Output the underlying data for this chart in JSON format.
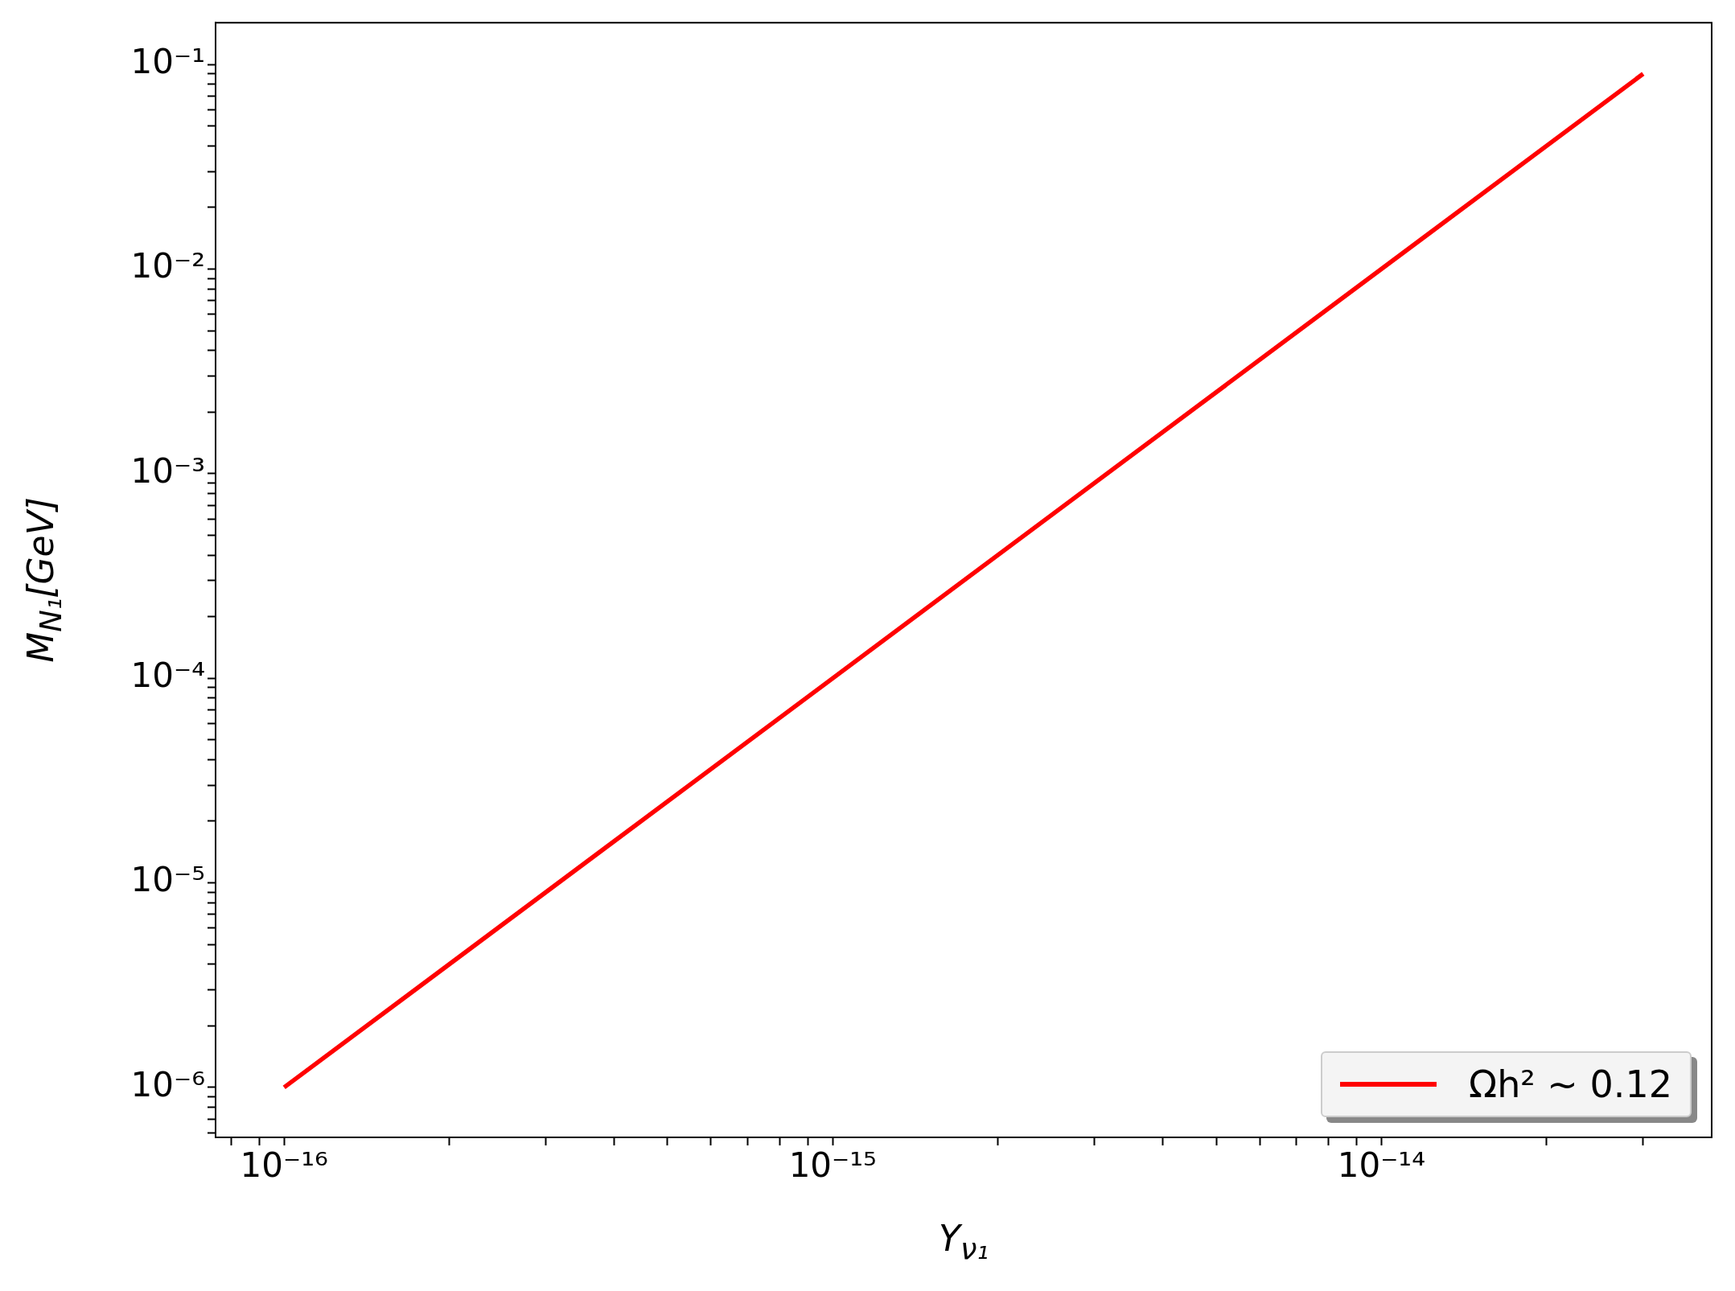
{
  "chart_data": {
    "type": "line",
    "xlabel": "Y$_{ν₁}$",
    "ylabel": "M$_{N₁}$[GeV]",
    "log": "xy",
    "grid": false,
    "legend": "bottom right",
    "marker": "none",
    "line_style": "solid",
    "xlim": [
      7.5e-17,
      4e-14
    ],
    "ylim": [
      5.7e-07,
      0.16
    ],
    "xticks": [
      {
        "value": 8e-17,
        "label": null
      },
      {
        "value": 9e-17,
        "label": null
      },
      {
        "value": 1e-16,
        "label": "10⁻¹⁶"
      },
      {
        "value": 2e-16,
        "label": null
      },
      {
        "value": 3e-16,
        "label": null
      },
      {
        "value": 4e-16,
        "label": null
      },
      {
        "value": 5e-16,
        "label": null
      },
      {
        "value": 6e-16,
        "label": null
      },
      {
        "value": 7e-16,
        "label": null
      },
      {
        "value": 8e-16,
        "label": null
      },
      {
        "value": 9e-16,
        "label": null
      },
      {
        "value": 1e-15,
        "label": "10⁻¹⁵"
      },
      {
        "value": 2e-15,
        "label": null
      },
      {
        "value": 3e-15,
        "label": null
      },
      {
        "value": 4e-15,
        "label": null
      },
      {
        "value": 5e-15,
        "label": null
      },
      {
        "value": 6e-15,
        "label": null
      },
      {
        "value": 7e-15,
        "label": null
      },
      {
        "value": 8e-15,
        "label": null
      },
      {
        "value": 9e-15,
        "label": null
      },
      {
        "value": 1e-14,
        "label": "10⁻¹⁴"
      },
      {
        "value": 2e-14,
        "label": null
      },
      {
        "value": 3e-14,
        "label": null
      }
    ],
    "yticks": [
      {
        "value": 6e-07,
        "label": null
      },
      {
        "value": 7e-07,
        "label": null
      },
      {
        "value": 8e-07,
        "label": null
      },
      {
        "value": 9e-07,
        "label": null
      },
      {
        "value": 1e-06,
        "label": "10⁻⁶"
      },
      {
        "value": 2e-06,
        "label": null
      },
      {
        "value": 3e-06,
        "label": null
      },
      {
        "value": 4e-06,
        "label": null
      },
      {
        "value": 5e-06,
        "label": null
      },
      {
        "value": 6e-06,
        "label": null
      },
      {
        "value": 7e-06,
        "label": null
      },
      {
        "value": 8e-06,
        "label": null
      },
      {
        "value": 9e-06,
        "label": null
      },
      {
        "value": 1e-05,
        "label": "10⁻⁵"
      },
      {
        "value": 2e-05,
        "label": null
      },
      {
        "value": 3e-05,
        "label": null
      },
      {
        "value": 4e-05,
        "label": null
      },
      {
        "value": 5e-05,
        "label": null
      },
      {
        "value": 6e-05,
        "label": null
      },
      {
        "value": 7e-05,
        "label": null
      },
      {
        "value": 8e-05,
        "label": null
      },
      {
        "value": 9e-05,
        "label": null
      },
      {
        "value": 0.0001,
        "label": "10⁻⁴"
      },
      {
        "value": 0.0002,
        "label": null
      },
      {
        "value": 0.0003,
        "label": null
      },
      {
        "value": 0.0004,
        "label": null
      },
      {
        "value": 0.0005,
        "label": null
      },
      {
        "value": 0.0006,
        "label": null
      },
      {
        "value": 0.0007,
        "label": null
      },
      {
        "value": 0.0008,
        "label": null
      },
      {
        "value": 0.0009,
        "label": null
      },
      {
        "value": 0.001,
        "label": "10⁻³"
      },
      {
        "value": 0.002,
        "label": null
      },
      {
        "value": 0.003,
        "label": null
      },
      {
        "value": 0.004,
        "label": null
      },
      {
        "value": 0.005,
        "label": null
      },
      {
        "value": 0.006,
        "label": null
      },
      {
        "value": 0.007,
        "label": null
      },
      {
        "value": 0.008,
        "label": null
      },
      {
        "value": 0.009,
        "label": null
      },
      {
        "value": 0.01,
        "label": "10⁻²"
      },
      {
        "value": 0.02,
        "label": null
      },
      {
        "value": 0.03,
        "label": null
      },
      {
        "value": 0.04,
        "label": null
      },
      {
        "value": 0.05,
        "label": null
      },
      {
        "value": 0.06,
        "label": null
      },
      {
        "value": 0.07,
        "label": null
      },
      {
        "value": 0.08,
        "label": null
      },
      {
        "value": 0.09,
        "label": null
      },
      {
        "value": 0.1,
        "label": "10⁻¹"
      }
    ],
    "series": [
      {
        "name": "Ωh² ~ 0.12",
        "color": "#ff0000",
        "x": [
          1e-16,
          3e-14
        ],
        "values": [
          1e-06,
          0.09
        ]
      }
    ]
  }
}
